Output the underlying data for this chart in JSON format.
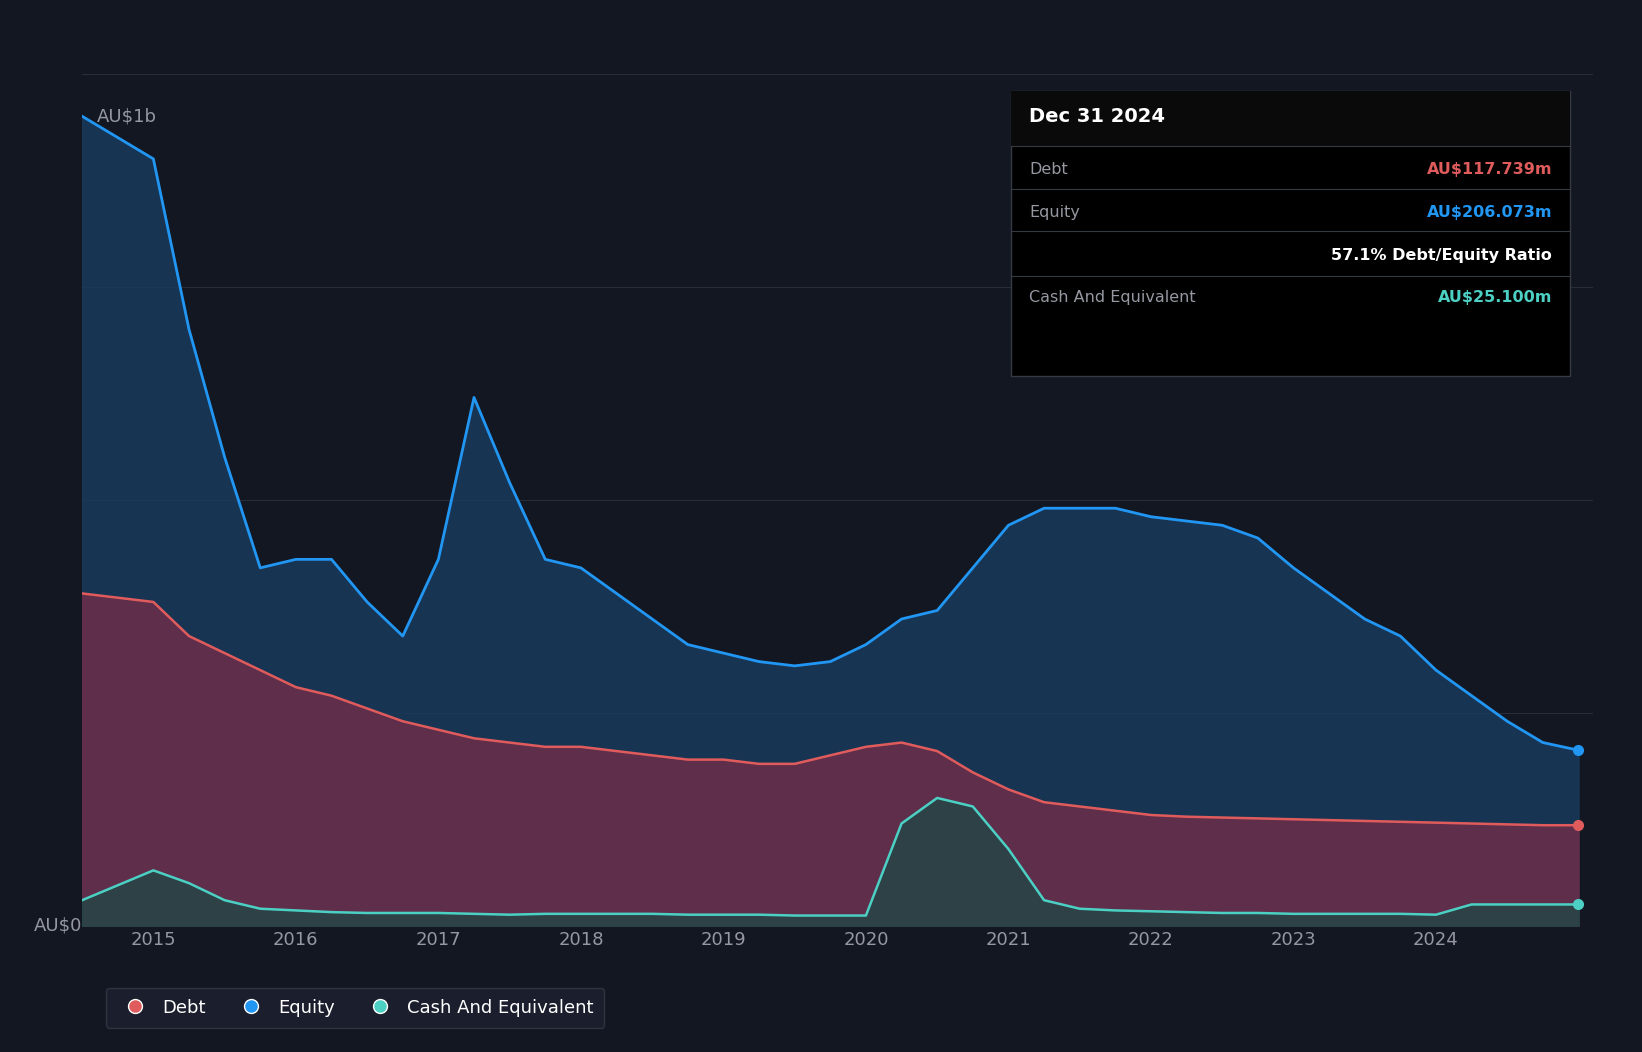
{
  "bg_color": "#131722",
  "plot_bg_color": "#131722",
  "grid_color": "#2a2e39",
  "title_color": "#ffffff",
  "axis_label_color": "#9598a1",
  "tooltip_bg": "#000000",
  "tooltip_border": "#363a45",
  "debt_color": "#e05c5c",
  "equity_color": "#2196f3",
  "cash_color": "#4dd0c4",
  "debt_fill": "#6b2d4a",
  "equity_fill": "#1a3a5c",
  "cash_fill": "#1a4a46",
  "ylabel_text": "AU$1b",
  "y0_text": "AU$0",
  "legend_items": [
    "Debt",
    "Equity",
    "Cash And Equivalent"
  ],
  "tooltip_date": "Dec 31 2024",
  "tooltip_debt_val": "AU$117.739m",
  "tooltip_equity_val": "AU$206.073m",
  "tooltip_ratio": "57.1% Debt/Equity Ratio",
  "tooltip_cash_val": "AU$25.100m",
  "years": [
    2014.5,
    2015.0,
    2015.25,
    2015.5,
    2015.75,
    2016.0,
    2016.25,
    2016.5,
    2016.75,
    2017.0,
    2017.25,
    2017.5,
    2017.75,
    2018.0,
    2018.25,
    2018.5,
    2018.75,
    2019.0,
    2019.25,
    2019.5,
    2019.75,
    2020.0,
    2020.25,
    2020.5,
    2020.75,
    2021.0,
    2021.25,
    2021.5,
    2021.75,
    2022.0,
    2022.25,
    2022.5,
    2022.75,
    2023.0,
    2023.25,
    2023.5,
    2023.75,
    2024.0,
    2024.25,
    2024.5,
    2024.75,
    2025.0
  ],
  "equity": [
    950,
    900,
    700,
    550,
    420,
    430,
    430,
    380,
    340,
    430,
    620,
    520,
    430,
    420,
    390,
    360,
    330,
    320,
    310,
    305,
    310,
    330,
    360,
    370,
    420,
    470,
    490,
    490,
    490,
    480,
    475,
    470,
    455,
    420,
    390,
    360,
    340,
    300,
    270,
    240,
    215,
    206
  ],
  "debt": [
    390,
    380,
    340,
    320,
    300,
    280,
    270,
    255,
    240,
    230,
    220,
    215,
    210,
    210,
    205,
    200,
    195,
    195,
    190,
    190,
    200,
    210,
    215,
    205,
    180,
    160,
    145,
    140,
    135,
    130,
    128,
    127,
    126,
    125,
    124,
    123,
    122,
    121,
    120,
    119,
    118,
    118
  ],
  "cash": [
    30,
    65,
    50,
    30,
    20,
    18,
    16,
    15,
    15,
    15,
    14,
    13,
    14,
    14,
    14,
    14,
    13,
    13,
    13,
    12,
    12,
    12,
    120,
    150,
    140,
    90,
    30,
    20,
    18,
    17,
    16,
    15,
    15,
    14,
    14,
    14,
    14,
    13,
    25,
    25,
    25,
    25
  ],
  "xlim": [
    2014.5,
    2025.1
  ],
  "ylim": [
    0,
    1000
  ],
  "xticks": [
    2015,
    2016,
    2017,
    2018,
    2019,
    2020,
    2021,
    2022,
    2023,
    2024
  ],
  "yticks_labels": [
    "AU$0",
    "AU$1b"
  ],
  "yticks_vals": [
    0,
    1000
  ]
}
